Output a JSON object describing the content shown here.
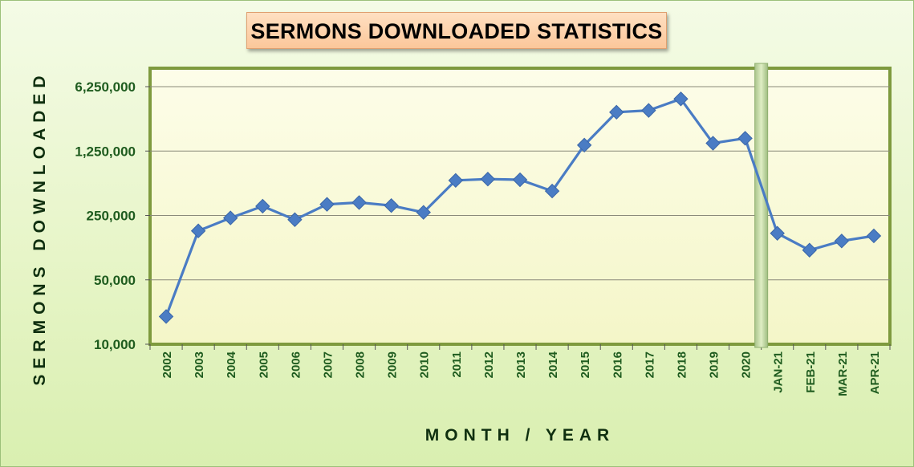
{
  "chart_data": {
    "type": "line",
    "title": "SERMONS DOWNLOADED STATISTICS",
    "xlabel": "MONTH / YEAR",
    "ylabel": "SERMONS DOWNLOADED",
    "yscale": "log",
    "ylim": [
      10000,
      6250000
    ],
    "yticks": [
      10000,
      50000,
      250000,
      1250000,
      6250000
    ],
    "ytick_labels": [
      "10,000",
      "50,000",
      "250,000",
      "1,250,000",
      "6,250,000"
    ],
    "grid": true,
    "legend": "none",
    "categories": [
      "2002",
      "2003",
      "2004",
      "2005",
      "2006",
      "2007",
      "2008",
      "2009",
      "2010",
      "2011",
      "2012",
      "2013",
      "2014",
      "2015",
      "2016",
      "2017",
      "2018",
      "2019",
      "2020",
      "JAN-21",
      "FEB-21",
      "MAR-21",
      "APR-21"
    ],
    "series": [
      {
        "color": "#4a7cc4",
        "values": [
          20000,
          170000,
          235000,
          315000,
          225000,
          330000,
          345000,
          320000,
          270000,
          600000,
          620000,
          610000,
          460000,
          1450000,
          3300000,
          3450000,
          4600000,
          1520000,
          1720000,
          160000,
          105000,
          132000,
          150000
        ]
      }
    ],
    "divider_after_category": "2020"
  }
}
